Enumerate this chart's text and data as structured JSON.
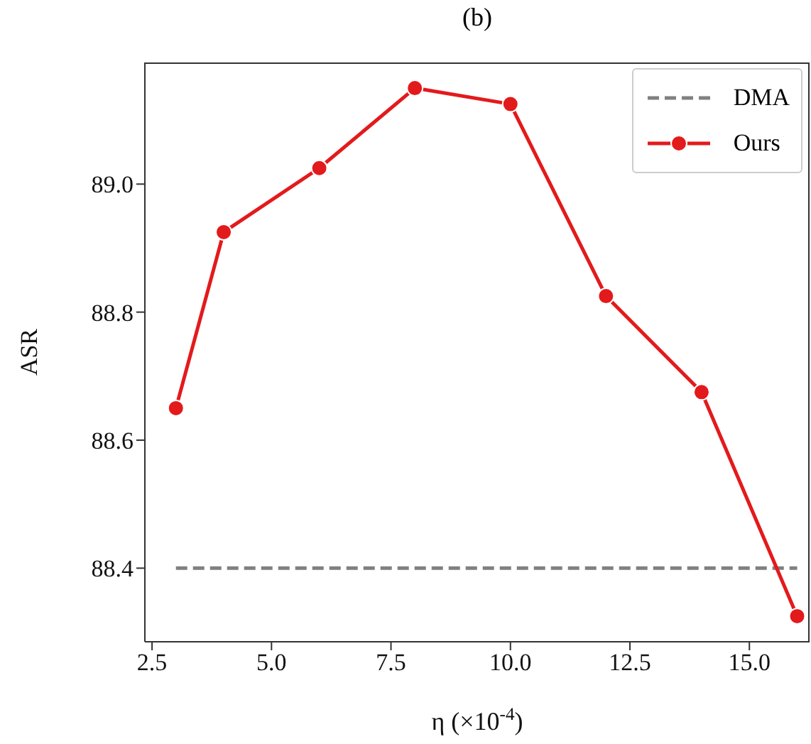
{
  "chart_data": {
    "type": "line",
    "title": "(b)",
    "xlabel": "η (×10$^{-4}$)",
    "ylabel": "ASR",
    "xlim": [
      2.35,
      16.26
    ],
    "xticks": [
      2.5,
      {
        "value": 5,
        "label": "5.0"
      },
      7.5,
      {
        "value": 10,
        "label": "10.0"
      },
      12.5,
      {
        "value": 15,
        "label": "15.0"
      }
    ],
    "ylim": [
      88.285,
      89.19
    ],
    "yticks": [
      88.4,
      88.6,
      88.8,
      {
        "value": 89,
        "label": "89.0"
      }
    ],
    "grid": false,
    "legend": "top right",
    "series": [
      {
        "name": "DMA",
        "color": "#808080",
        "x": [
          3,
          16
        ],
        "values": [
          88.4,
          88.4
        ],
        "line_style": "dashed",
        "marker": "none"
      },
      {
        "name": "Ours",
        "color": "#e31a1c",
        "x": [
          3,
          4,
          6,
          8,
          10,
          12,
          14,
          16
        ],
        "values": [
          88.65,
          88.925,
          89.025,
          89.15,
          89.125,
          88.825,
          88.675,
          88.325
        ],
        "line_style": "solid",
        "marker": "circle"
      }
    ]
  }
}
